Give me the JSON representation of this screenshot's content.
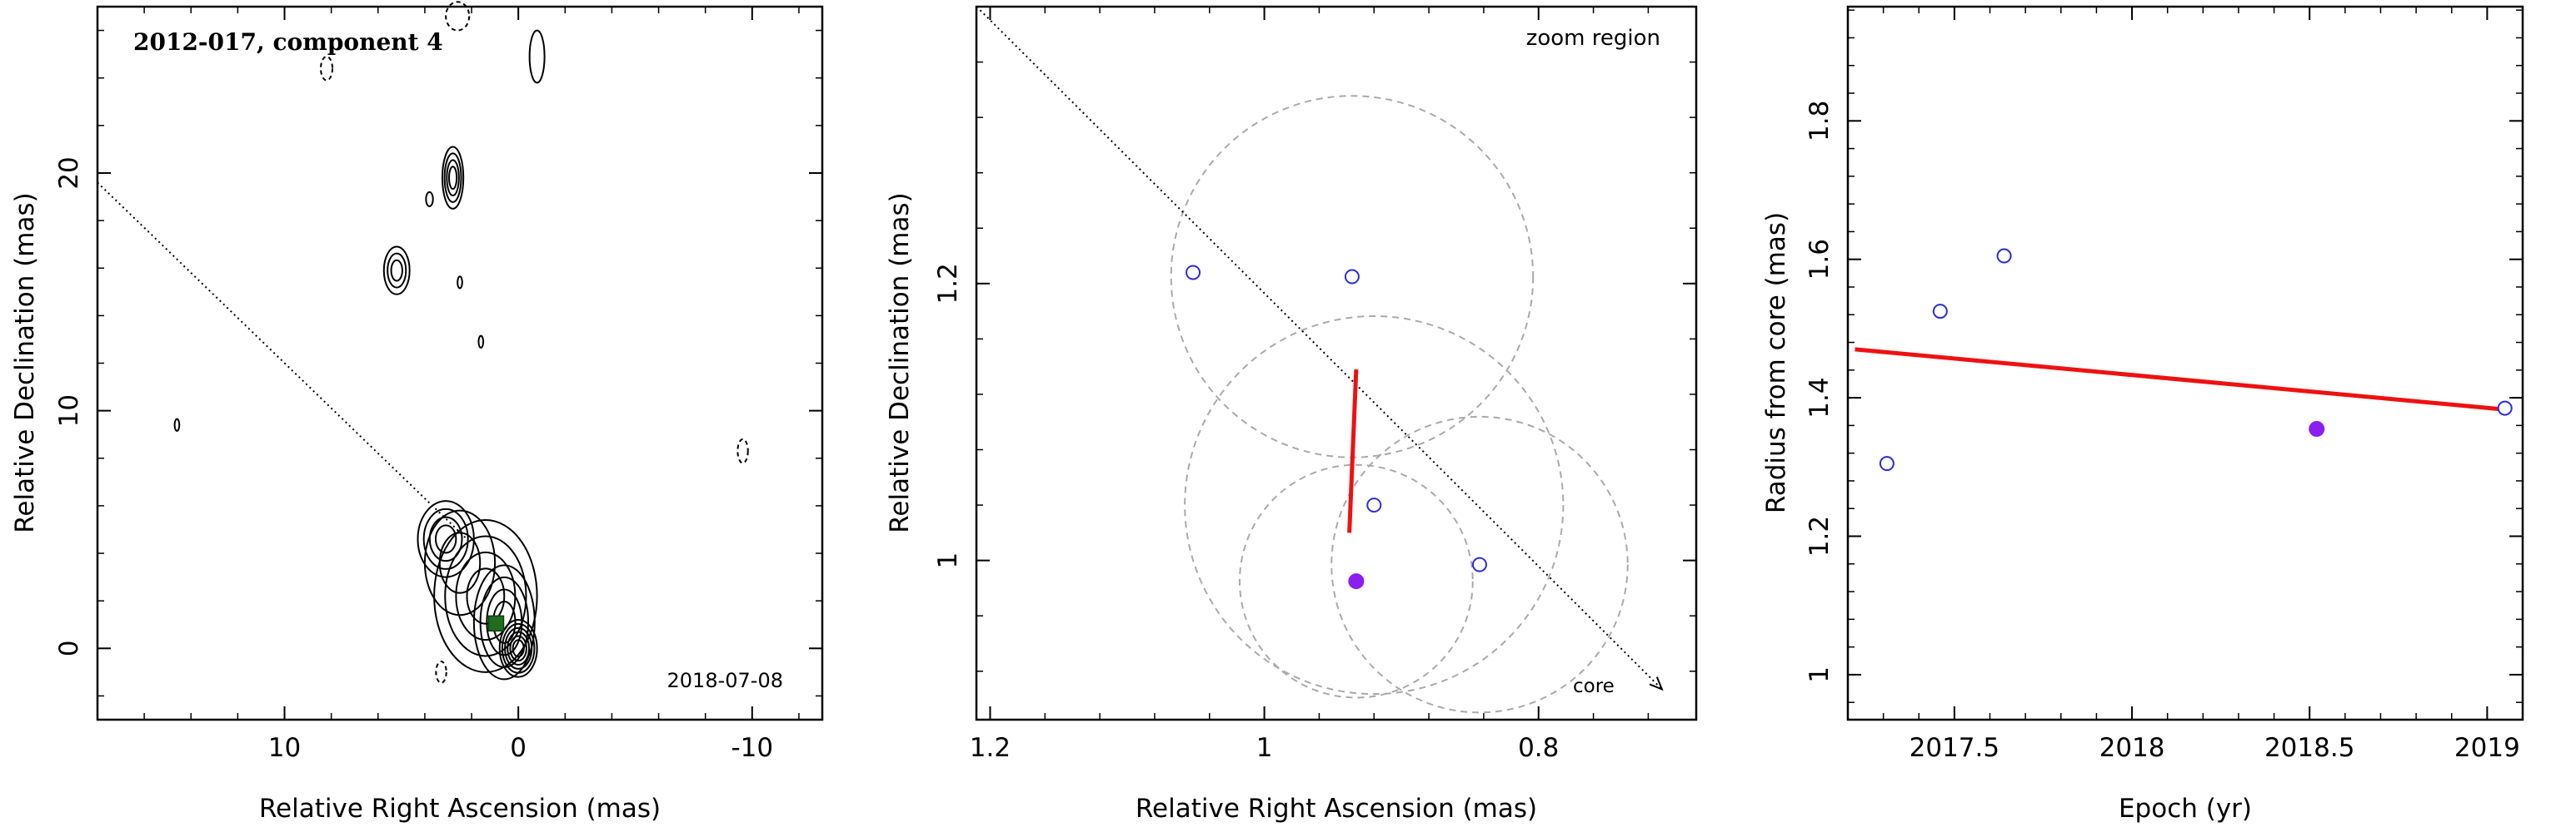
{
  "chart_data": [
    {
      "type": "contour",
      "title": "2012-017, component 4",
      "date": "2018-07-08",
      "xlabel": "Relative Right Ascension (mas)",
      "ylabel": "Relative Declination (mas)",
      "xlim": [
        18,
        -13
      ],
      "ylim": [
        -3,
        27
      ],
      "xticks": [
        10,
        0,
        -10
      ],
      "xtick_labels": [
        "10",
        "0",
        "-10"
      ],
      "yticks": [
        0,
        10,
        20
      ],
      "ytick_labels": [
        "0",
        "10",
        "20"
      ],
      "dotted_line": [
        [
          18,
          19.6
        ],
        [
          2.2,
          4.6
        ]
      ],
      "component_marker": {
        "x": 0.95,
        "y": 1.05,
        "color": "#1f6e1f"
      },
      "contour_blobs": [
        {
          "x": 0.0,
          "y": 0.0,
          "rx": 0.8,
          "ry": 1.2,
          "n": 6
        },
        {
          "x": 0.6,
          "y": 1.1,
          "rx": 1.3,
          "ry": 2.4,
          "n": 4
        },
        {
          "x": 1.4,
          "y": 2.2,
          "rx": 2.2,
          "ry": 3.2,
          "n": 4
        },
        {
          "x": 3.1,
          "y": 4.6,
          "rx": 1.2,
          "ry": 1.6,
          "n": 4
        },
        {
          "x": 2.5,
          "y": 3.6,
          "rx": 1.5,
          "ry": 2.2,
          "n": 2
        },
        {
          "x": 2.8,
          "y": 19.8,
          "rx": 0.45,
          "ry": 1.3,
          "n": 4
        },
        {
          "x": 5.2,
          "y": 15.9,
          "rx": 0.55,
          "ry": 1.0,
          "n": 3
        },
        {
          "x": -0.8,
          "y": 24.9,
          "rx": 0.32,
          "ry": 1.1,
          "n": 1
        },
        {
          "x": 3.8,
          "y": 18.9,
          "rx": 0.15,
          "ry": 0.3,
          "n": 1
        },
        {
          "x": 2.5,
          "y": 15.4,
          "rx": 0.1,
          "ry": 0.25,
          "n": 1
        },
        {
          "x": 1.6,
          "y": 12.9,
          "rx": 0.1,
          "ry": 0.25,
          "n": 1
        },
        {
          "x": 14.6,
          "y": 9.4,
          "rx": 0.1,
          "ry": 0.25,
          "n": 1
        }
      ],
      "negative_contours": [
        {
          "x": 8.2,
          "y": 24.4,
          "rx": 0.25,
          "ry": 0.5
        },
        {
          "x": 2.6,
          "y": 26.6,
          "rx": 0.5,
          "ry": 0.6
        },
        {
          "x": 3.3,
          "y": -1.0,
          "rx": 0.22,
          "ry": 0.45
        },
        {
          "x": -9.6,
          "y": 8.3,
          "rx": 0.22,
          "ry": 0.5
        }
      ]
    },
    {
      "type": "scatter",
      "title": "zoom region",
      "xlabel": "Relative Right Ascension (mas)",
      "ylabel": "Relative Declination (mas)",
      "xlim": [
        1.21,
        0.685
      ],
      "ylim": [
        0.885,
        1.4
      ],
      "xticks": [
        1.2,
        1.0,
        0.8
      ],
      "xtick_labels": [
        "1.2",
        "1",
        "0.8"
      ],
      "yticks": [
        1.0,
        1.2
      ],
      "ytick_labels": [
        "1",
        "1.2"
      ],
      "points_open": [
        {
          "x": 1.052,
          "y": 1.208
        },
        {
          "x": 0.936,
          "y": 1.205
        },
        {
          "x": 0.92,
          "y": 1.04
        },
        {
          "x": 0.843,
          "y": 0.997
        }
      ],
      "point_filled": {
        "x": 0.933,
        "y": 0.985
      },
      "circles": [
        {
          "x": 0.936,
          "y": 1.205,
          "r": 0.132
        },
        {
          "x": 0.92,
          "y": 1.04,
          "r": 0.138
        },
        {
          "x": 0.843,
          "y": 0.997,
          "r": 0.108
        },
        {
          "x": 0.933,
          "y": 0.985,
          "r": 0.085
        }
      ],
      "fit_line": [
        [
          0.938,
          1.02
        ],
        [
          0.933,
          1.138
        ]
      ],
      "direction_line": [
        [
          1.22,
          1.41
        ],
        [
          0.71,
          0.907
        ]
      ],
      "arrow_label": "core"
    },
    {
      "type": "scatter",
      "xlabel": "Epoch (yr)",
      "ylabel": "Radius from core (mas)",
      "xlim": [
        2017.2,
        2019.1
      ],
      "ylim": [
        0.935,
        1.965
      ],
      "xticks": [
        2017.5,
        2018,
        2018.5,
        2019
      ],
      "xtick_labels": [
        "2017.5",
        "2018",
        "2018.5",
        "2019"
      ],
      "yticks": [
        1.0,
        1.2,
        1.4,
        1.6,
        1.8
      ],
      "ytick_labels": [
        "1",
        "1.2",
        "1.4",
        "1.6",
        "1.8"
      ],
      "points_open": [
        {
          "x": 2017.31,
          "y": 1.305
        },
        {
          "x": 2017.46,
          "y": 1.525
        },
        {
          "x": 2017.64,
          "y": 1.605
        },
        {
          "x": 2019.05,
          "y": 1.385
        }
      ],
      "point_filled": {
        "x": 2018.52,
        "y": 1.355
      },
      "fit_line": [
        [
          2017.22,
          1.47
        ],
        [
          2019.05,
          1.383
        ]
      ]
    }
  ],
  "colors": {
    "open_point": "#2b2bdc",
    "filled_point": "#8a1ff0",
    "fit_line": "#ee1111",
    "circle": "#aaaaaa"
  }
}
